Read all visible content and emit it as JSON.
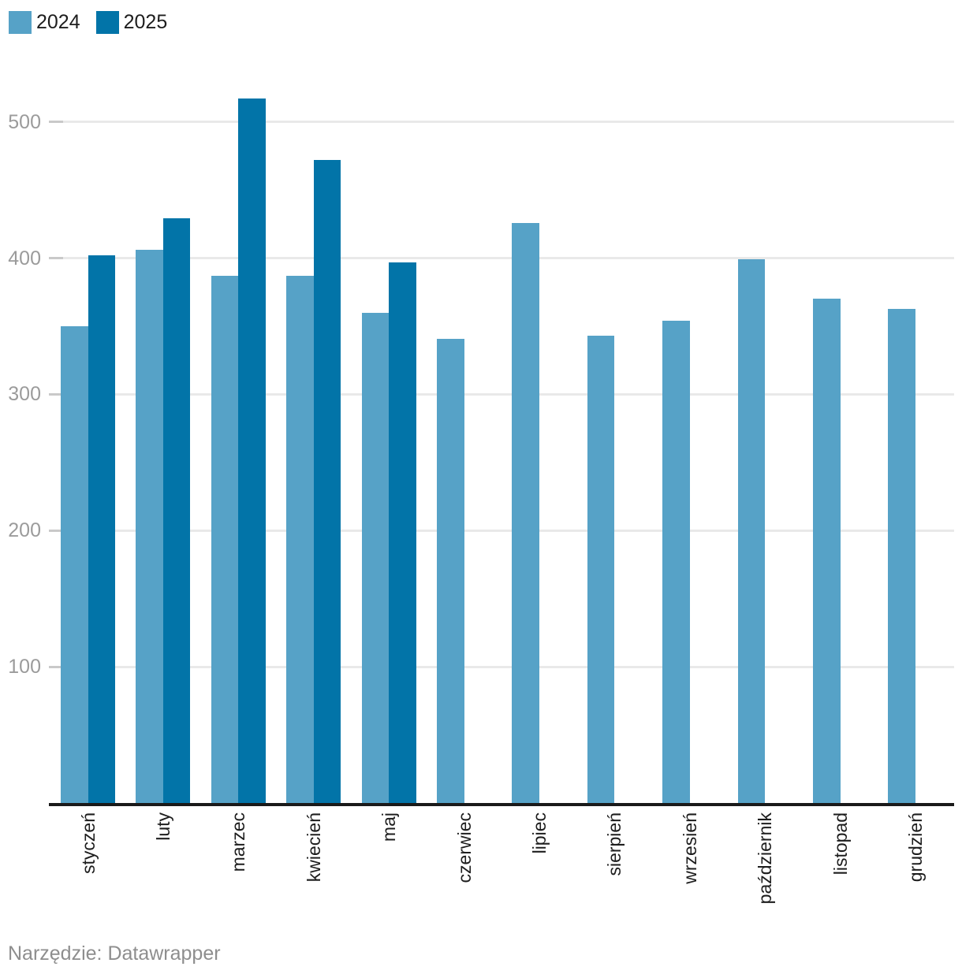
{
  "legend": {
    "items": [
      {
        "label": "2024",
        "color": "#56a2c7"
      },
      {
        "label": "2025",
        "color": "#0274a8"
      }
    ]
  },
  "chart_data": {
    "type": "bar",
    "categories": [
      "styczeń",
      "luty",
      "marzec",
      "kwiecień",
      "maj",
      "czerwiec",
      "lipiec",
      "sierpień",
      "wrzesień",
      "październik",
      "listopad",
      "grudzień"
    ],
    "series": [
      {
        "name": "2024",
        "color": "#56a2c7",
        "values": [
          350,
          406,
          387,
          387,
          360,
          341,
          426,
          343,
          354,
          399,
          370,
          363
        ]
      },
      {
        "name": "2025",
        "color": "#0274a8",
        "values": [
          402,
          429,
          517,
          472,
          397,
          null,
          null,
          null,
          null,
          null,
          null,
          null
        ]
      }
    ],
    "title": "",
    "xlabel": "",
    "ylabel": "",
    "yticks": [
      100,
      200,
      300,
      400,
      500
    ],
    "ylim": [
      0,
      520
    ],
    "grid": true,
    "legend_position": "top-left"
  },
  "colors": {
    "grid": "#e9e9e9",
    "grid_tick": "#c9c9c9",
    "axis": "#1a1a1a",
    "y_tick_label": "#9b9b9b",
    "x_tick_label": "#1d1d1d",
    "footer": "#8e8e8e"
  },
  "footer": {
    "text": "Narzędzie: Datawrapper"
  }
}
